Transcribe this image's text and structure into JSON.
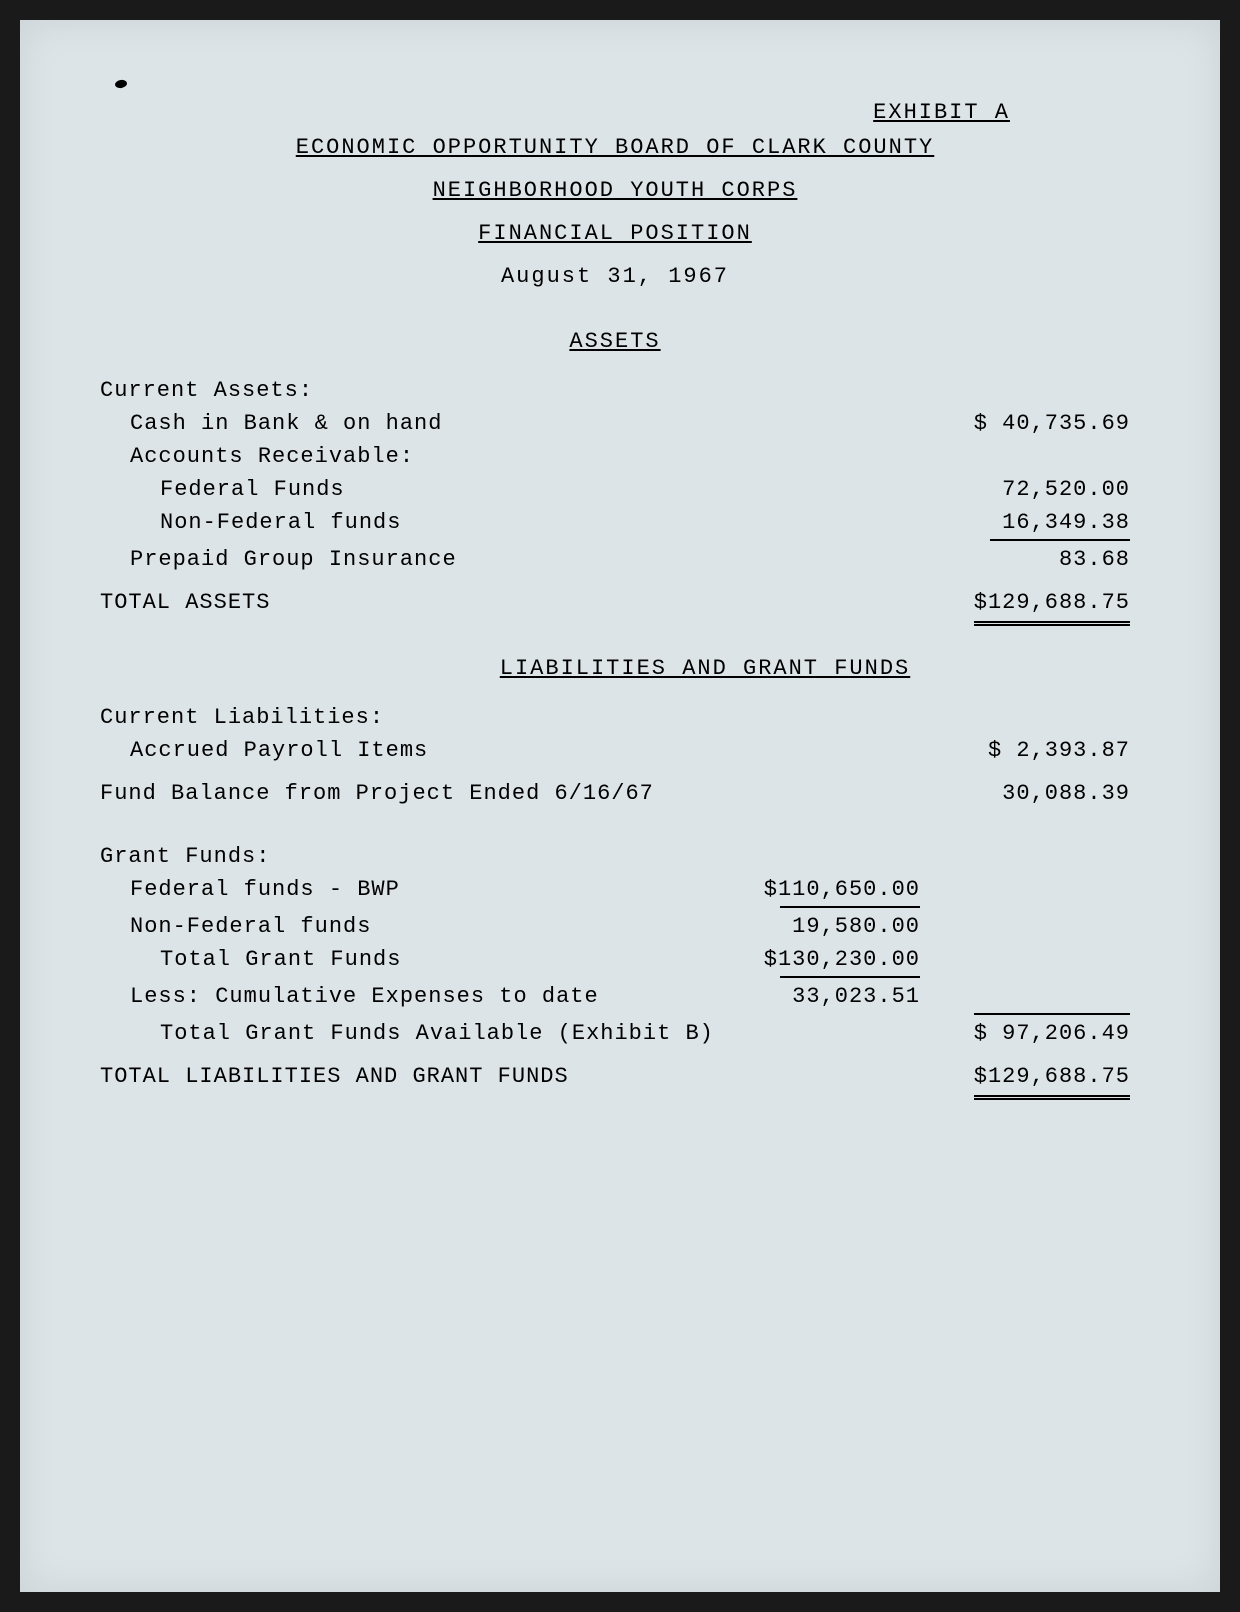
{
  "exhibit": "EXHIBIT A",
  "header": {
    "org": "ECONOMIC OPPORTUNITY BOARD OF CLARK COUNTY",
    "program": "NEIGHBORHOOD YOUTH CORPS",
    "title": "FINANCIAL POSITION",
    "date": "August 31, 1967"
  },
  "sections": {
    "assets": "ASSETS",
    "liabilities": "LIABILITIES AND GRANT FUNDS"
  },
  "assets": {
    "current_label": "Current Assets:",
    "cash_label": "Cash in Bank & on hand",
    "cash_value": "$ 40,735.69",
    "ar_label": "Accounts Receivable:",
    "federal_label": "Federal Funds",
    "federal_value": "72,520.00",
    "nonfederal_label": "Non-Federal funds",
    "nonfederal_value": "16,349.38",
    "prepaid_label": "Prepaid Group Insurance",
    "prepaid_value": "83.68",
    "total_label": "TOTAL ASSETS",
    "total_value": "$129,688.75"
  },
  "liabilities": {
    "current_label": "Current Liabilities:",
    "accrued_label": "Accrued Payroll Items",
    "accrued_value": "$  2,393.87",
    "fund_balance_label": "Fund Balance from Project Ended 6/16/67",
    "fund_balance_value": "30,088.39",
    "grant_label": "Grant Funds:",
    "fed_bwp_label": "Federal funds - BWP",
    "fed_bwp_value": "$110,650.00",
    "nonfed_label": "Non-Federal funds",
    "nonfed_value": "19,580.00",
    "total_grant_label": "Total Grant Funds",
    "total_grant_value": "$130,230.00",
    "less_label": "Less:  Cumulative Expenses to date",
    "less_value": "33,023.51",
    "available_label": "Total Grant Funds Available (Exhibit B)",
    "available_value": "$ 97,206.49",
    "total_label": "TOTAL LIABILITIES AND GRANT FUNDS",
    "total_value": "$129,688.75"
  }
}
